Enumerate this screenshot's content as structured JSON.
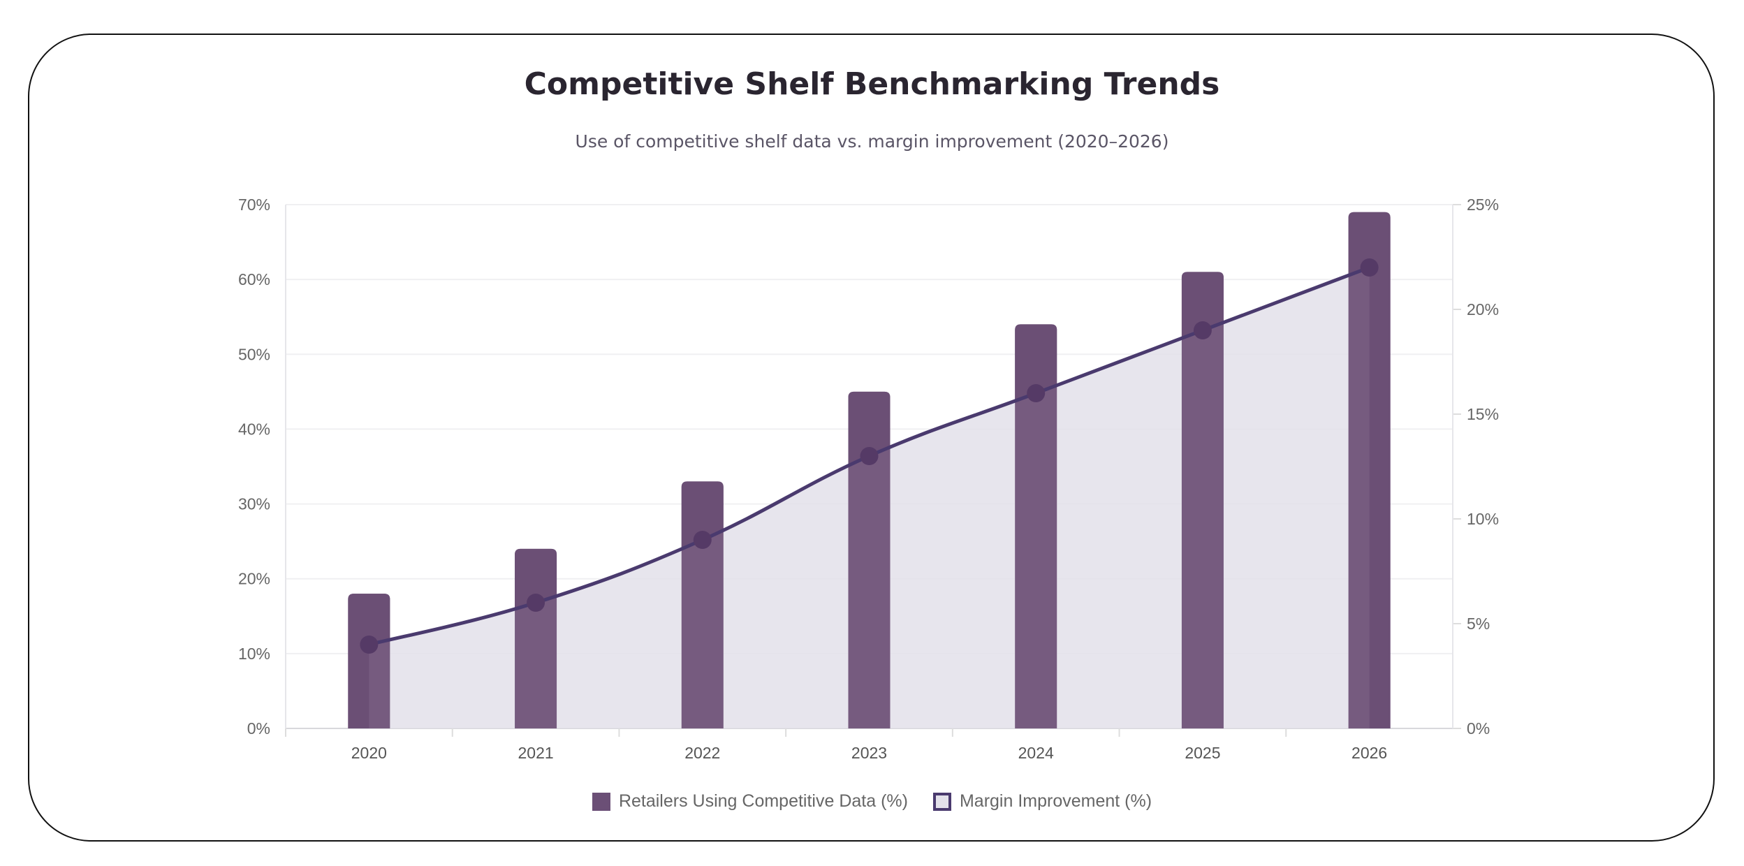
{
  "chart_data": {
    "type": "bar+line",
    "title": "Competitive Shelf Benchmarking Trends",
    "subtitle": "Use of competitive shelf data vs. margin improvement (2020–2026)",
    "categories": [
      "2020",
      "2021",
      "2022",
      "2023",
      "2024",
      "2025",
      "2026"
    ],
    "series": [
      {
        "name": "Retailers Using Competitive Data (%)",
        "type": "bar",
        "axis": "left",
        "values": [
          18,
          24,
          33,
          45,
          54,
          61,
          69
        ],
        "color": "#6b4f76"
      },
      {
        "name": "Margin Improvement (%)",
        "type": "area-line",
        "axis": "right",
        "values": [
          4,
          6,
          9,
          13,
          16,
          19,
          22
        ],
        "color": "#4a3a6e",
        "fill": "#e3e1ea"
      }
    ],
    "y_left": {
      "min": 0,
      "max": 70,
      "step": 10,
      "ticks": [
        "0%",
        "10%",
        "20%",
        "30%",
        "40%",
        "50%",
        "60%",
        "70%"
      ]
    },
    "y_right": {
      "min": 0,
      "max": 25,
      "step": 5,
      "ticks": [
        "0%",
        "5%",
        "10%",
        "15%",
        "20%",
        "25%"
      ]
    },
    "grid": true,
    "legend": "bottom"
  }
}
